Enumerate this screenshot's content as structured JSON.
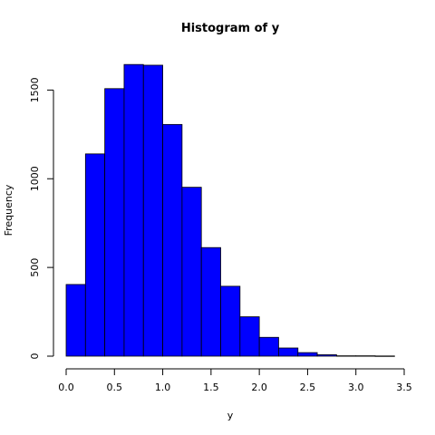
{
  "chart_data": {
    "type": "bar",
    "title": "Histogram of y",
    "xlabel": "y",
    "ylabel": "Frequency",
    "bar_color": "#0000ff",
    "bin_width": 0.2,
    "x": [
      0.1,
      0.3,
      0.5,
      0.7,
      0.9,
      1.1,
      1.3,
      1.5,
      1.7,
      1.9,
      2.1,
      2.3,
      2.5,
      2.7,
      2.9,
      3.1,
      3.3
    ],
    "values": [
      404,
      1140,
      1508,
      1644,
      1640,
      1306,
      952,
      612,
      394,
      222,
      106,
      46,
      20,
      8,
      2,
      2,
      1
    ],
    "xlim": [
      0,
      3.5
    ],
    "ylim": [
      0,
      1650
    ],
    "x_ticks": [
      "0.0",
      "0.5",
      "1.0",
      "1.5",
      "2.0",
      "2.5",
      "3.0",
      "3.5"
    ],
    "y_ticks": [
      "0",
      "500",
      "1000",
      "1500"
    ],
    "grid": false,
    "legend": "none"
  }
}
